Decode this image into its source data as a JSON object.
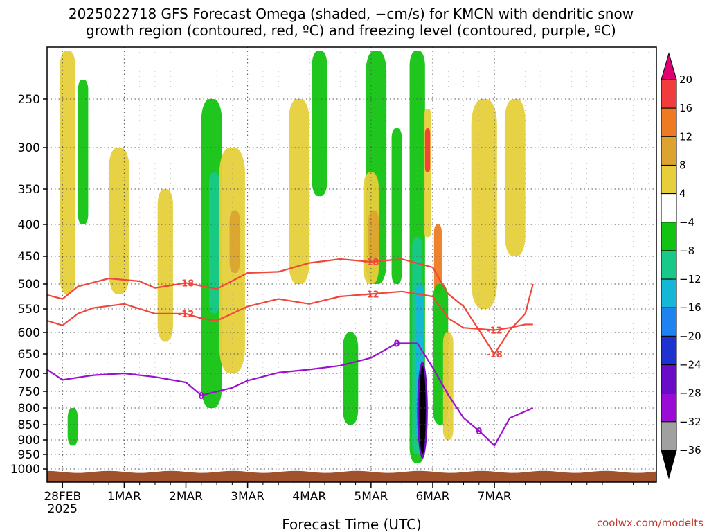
{
  "chart_data": {
    "type": "heatmap",
    "title_lines": [
      "2025022718 GFS Forecast Omega (shaded, −cm/s) for KMCN with dendritic snow",
      "growth region (contoured, red, ºC) and freezing level (contoured, purple, ºC)"
    ],
    "xlabel": "Forecast Time (UTC)",
    "ylabel": "",
    "credit": "coolwx.com/modelts",
    "x_range_hours": [
      -6,
      231
    ],
    "x_ticks": [
      {
        "label": "28FEB",
        "sublabel": "2025",
        "hour": 0
      },
      {
        "label": "1MAR",
        "sublabel": "",
        "hour": 24
      },
      {
        "label": "2MAR",
        "sublabel": "",
        "hour": 48
      },
      {
        "label": "3MAR",
        "sublabel": "",
        "hour": 72
      },
      {
        "label": "4MAR",
        "sublabel": "",
        "hour": 96
      },
      {
        "label": "5MAR",
        "sublabel": "",
        "hour": 120
      },
      {
        "label": "6MAR",
        "sublabel": "",
        "hour": 144
      },
      {
        "label": "7MAR",
        "sublabel": "",
        "hour": 168
      }
    ],
    "y_ticks": [
      250,
      300,
      350,
      400,
      450,
      500,
      550,
      600,
      650,
      700,
      750,
      800,
      850,
      900,
      950,
      1000
    ],
    "y_unit": "hPa",
    "colorbar": {
      "labels": [
        "20",
        "16",
        "12",
        "8",
        "4",
        "−4",
        "−8",
        "−12",
        "−16",
        "−20",
        "−24",
        "−28",
        "−32",
        "−36"
      ],
      "colors": [
        "#e0006f",
        "#f03c3c",
        "#ee7b22",
        "#dca32e",
        "#e6cf3a",
        "#ffffff",
        "#12c312",
        "#18c98a",
        "#14b7d6",
        "#1e82f0",
        "#1e32d2",
        "#6a0bc8",
        "#9a0bd6",
        "#a0a0a0",
        "#000000"
      ]
    },
    "contours": {
      "dgz_minus12": {
        "color": "#f0463c",
        "label": "-12",
        "points": [
          [
            -6,
            575
          ],
          [
            0,
            585
          ],
          [
            6,
            560
          ],
          [
            12,
            548
          ],
          [
            24,
            540
          ],
          [
            36,
            560
          ],
          [
            48,
            560
          ],
          [
            54,
            570
          ],
          [
            60,
            575
          ],
          [
            72,
            545
          ],
          [
            84,
            530
          ],
          [
            96,
            540
          ],
          [
            108,
            525
          ],
          [
            120,
            520
          ],
          [
            132,
            515
          ],
          [
            144,
            525
          ],
          [
            150,
            570
          ],
          [
            156,
            590
          ],
          [
            168,
            595
          ],
          [
            174,
            590
          ],
          [
            180,
            583
          ],
          [
            183,
            583
          ]
        ]
      },
      "dgz_minus18": {
        "color": "#f0463c",
        "label": "-18",
        "points": [
          [
            -6,
            522
          ],
          [
            0,
            530
          ],
          [
            6,
            505
          ],
          [
            18,
            490
          ],
          [
            30,
            495
          ],
          [
            36,
            508
          ],
          [
            48,
            498
          ],
          [
            60,
            510
          ],
          [
            72,
            480
          ],
          [
            84,
            478
          ],
          [
            96,
            462
          ],
          [
            108,
            455
          ],
          [
            120,
            460
          ],
          [
            132,
            455
          ],
          [
            144,
            470
          ],
          [
            150,
            520
          ],
          [
            156,
            545
          ],
          [
            168,
            650
          ],
          [
            174,
            595
          ],
          [
            180,
            560
          ],
          [
            183,
            500
          ]
        ]
      },
      "freezing_level": {
        "color": "#9b0fcf",
        "label": "0",
        "points": [
          [
            -6,
            690
          ],
          [
            0,
            718
          ],
          [
            12,
            705
          ],
          [
            24,
            700
          ],
          [
            36,
            710
          ],
          [
            48,
            725
          ],
          [
            54,
            762
          ],
          [
            66,
            740
          ],
          [
            72,
            720
          ],
          [
            84,
            698
          ],
          [
            96,
            690
          ],
          [
            108,
            680
          ],
          [
            120,
            660
          ],
          [
            130,
            625
          ],
          [
            138,
            625
          ],
          [
            144,
            685
          ],
          [
            150,
            760
          ],
          [
            156,
            830
          ],
          [
            162,
            870
          ],
          [
            168,
            920
          ],
          [
            174,
            830
          ],
          [
            183,
            800
          ]
        ]
      }
    },
    "omega_blobs": [
      {
        "hour": 2,
        "p_top": 200,
        "p_bot": 520,
        "half_hours": 3,
        "color": "#e6cf3a"
      },
      {
        "hour": 4,
        "p_top": 800,
        "p_bot": 920,
        "half_hours": 2,
        "color": "#12c312"
      },
      {
        "hour": 8,
        "p_top": 230,
        "p_bot": 400,
        "half_hours": 2,
        "color": "#12c312"
      },
      {
        "hour": 22,
        "p_top": 300,
        "p_bot": 520,
        "half_hours": 4,
        "color": "#e6cf3a"
      },
      {
        "hour": 40,
        "p_top": 350,
        "p_bot": 620,
        "half_hours": 3,
        "color": "#e6cf3a"
      },
      {
        "hour": 58,
        "p_top": 250,
        "p_bot": 800,
        "half_hours": 4,
        "color": "#12c312"
      },
      {
        "hour": 59,
        "p_top": 330,
        "p_bot": 560,
        "half_hours": 2,
        "color": "#18c98a"
      },
      {
        "hour": 66,
        "p_top": 300,
        "p_bot": 700,
        "half_hours": 5,
        "color": "#e6cf3a"
      },
      {
        "hour": 67,
        "p_top": 380,
        "p_bot": 480,
        "half_hours": 2,
        "color": "#dca32e"
      },
      {
        "hour": 92,
        "p_top": 250,
        "p_bot": 500,
        "half_hours": 4,
        "color": "#e6cf3a"
      },
      {
        "hour": 100,
        "p_top": 200,
        "p_bot": 360,
        "half_hours": 3,
        "color": "#12c312"
      },
      {
        "hour": 112,
        "p_top": 600,
        "p_bot": 850,
        "half_hours": 3,
        "color": "#12c312"
      },
      {
        "hour": 122,
        "p_top": 200,
        "p_bot": 500,
        "half_hours": 4,
        "color": "#12c312"
      },
      {
        "hour": 120,
        "p_top": 330,
        "p_bot": 500,
        "half_hours": 3,
        "color": "#e6cf3a"
      },
      {
        "hour": 121,
        "p_top": 380,
        "p_bot": 460,
        "half_hours": 2,
        "color": "#dca32e"
      },
      {
        "hour": 130,
        "p_top": 280,
        "p_bot": 500,
        "half_hours": 2,
        "color": "#12c312"
      },
      {
        "hour": 138,
        "p_top": 200,
        "p_bot": 980,
        "half_hours": 3,
        "color": "#12c312"
      },
      {
        "hour": 138,
        "p_top": 420,
        "p_bot": 950,
        "half_hours": 2,
        "color": "#18c98a"
      },
      {
        "hour": 139,
        "p_top": 500,
        "p_bot": 900,
        "half_hours": 1.5,
        "color": "#14b7d6"
      },
      {
        "hour": 142,
        "p_top": 260,
        "p_bot": 420,
        "half_hours": 1.5,
        "color": "#e6cf3a"
      },
      {
        "hour": 142,
        "p_top": 280,
        "p_bot": 330,
        "half_hours": 1,
        "color": "#f03c3c"
      },
      {
        "hour": 146,
        "p_top": 400,
        "p_bot": 520,
        "half_hours": 1.5,
        "color": "#ee7b22"
      },
      {
        "hour": 147,
        "p_top": 500,
        "p_bot": 850,
        "half_hours": 3,
        "color": "#12c312"
      },
      {
        "hour": 150,
        "p_top": 600,
        "p_bot": 900,
        "half_hours": 2,
        "color": "#e6cf3a"
      },
      {
        "hour": 164,
        "p_top": 250,
        "p_bot": 550,
        "half_hours": 5,
        "color": "#e6cf3a"
      },
      {
        "hour": 176,
        "p_top": 250,
        "p_bot": 450,
        "half_hours": 4,
        "color": "#e6cf3a"
      }
    ],
    "core_blob": {
      "hour": 140,
      "p_top": 680,
      "p_bot": 950,
      "half_hours": 1,
      "color": "#000000"
    },
    "terrain": {
      "p_level": 1010,
      "color": "#a0522d"
    },
    "grid": true,
    "legend_position": "right"
  }
}
